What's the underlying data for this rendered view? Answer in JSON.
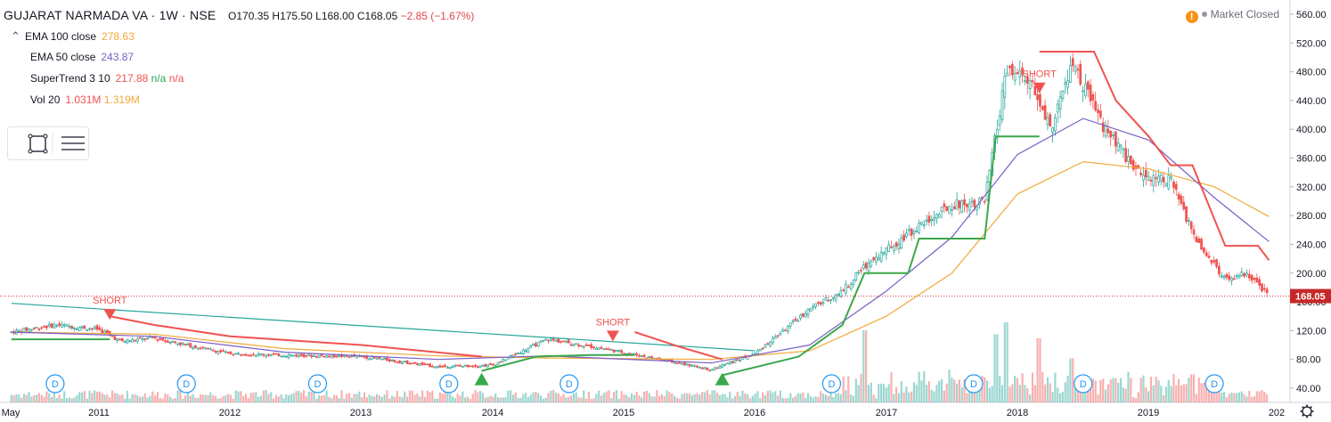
{
  "header": {
    "symbol": "GUJARAT NARMADA VA · 1W · NSE",
    "open": "O170.35",
    "high": "H175.50",
    "low": "L168.00",
    "close": "C168.05",
    "change": "−2.85 (−1.67%)"
  },
  "legend": [
    {
      "name": "EMA 100 close",
      "value": "278.63",
      "color": "#f2a93b"
    },
    {
      "name": "EMA 50 close",
      "value": "243.87",
      "color": "#7b5fc7"
    },
    {
      "name": "SuperTrend 3 10",
      "value": "217.88",
      "extra1": "n/a",
      "extra2": "n/a",
      "color": "#ef5350",
      "extra1_color": "#26a65b",
      "extra2_color": "#ef5350"
    },
    {
      "name": "Vol 20",
      "value": "1.031M",
      "extra1": "1.319M",
      "color": "#ef5350",
      "extra1_color": "#f2a93b"
    }
  ],
  "market_status": "Market Closed",
  "last_price_label": "168.05",
  "settings_icon": "gear-icon",
  "chart_data": {
    "type": "candlestick",
    "interval": "1W",
    "ylim": [
      40,
      560
    ],
    "y_ticks": [
      560,
      520,
      480,
      440,
      400,
      360,
      320,
      280,
      240,
      200,
      160,
      120,
      80,
      40
    ],
    "x_ticks": [
      "May",
      "2011",
      "2012",
      "2013",
      "2014",
      "2015",
      "2016",
      "2017",
      "2018",
      "2019",
      "202"
    ],
    "colors": {
      "up": "#26a69a",
      "down": "#ef5350",
      "candle_up_body": "#ffffff",
      "candle_down_body": "#ef5350",
      "trendline": "#26a69a",
      "last_price": "#d32f2f"
    },
    "price_path": [
      {
        "t": "2010-05",
        "v": 118
      },
      {
        "t": "2010-09",
        "v": 128
      },
      {
        "t": "2011-01",
        "v": 122
      },
      {
        "t": "2011-03",
        "v": 105
      },
      {
        "t": "2011-06",
        "v": 110
      },
      {
        "t": "2011-09",
        "v": 100
      },
      {
        "t": "2012-01",
        "v": 88
      },
      {
        "t": "2012-06",
        "v": 86
      },
      {
        "t": "2013-01",
        "v": 84
      },
      {
        "t": "2013-08",
        "v": 70
      },
      {
        "t": "2014-01",
        "v": 72
      },
      {
        "t": "2014-06",
        "v": 108
      },
      {
        "t": "2014-10",
        "v": 98
      },
      {
        "t": "2015-03",
        "v": 84
      },
      {
        "t": "2015-09",
        "v": 66
      },
      {
        "t": "2016-01",
        "v": 88
      },
      {
        "t": "2016-06",
        "v": 150
      },
      {
        "t": "2016-09",
        "v": 175
      },
      {
        "t": "2016-11",
        "v": 210
      },
      {
        "t": "2017-03",
        "v": 255
      },
      {
        "t": "2017-07",
        "v": 295
      },
      {
        "t": "2017-10",
        "v": 300
      },
      {
        "t": "2017-12",
        "v": 480
      },
      {
        "t": "2018-02",
        "v": 470
      },
      {
        "t": "2018-04",
        "v": 400
      },
      {
        "t": "2018-06",
        "v": 490
      },
      {
        "t": "2018-09",
        "v": 400
      },
      {
        "t": "2018-12",
        "v": 340
      },
      {
        "t": "2019-03",
        "v": 330
      },
      {
        "t": "2019-05",
        "v": 255
      },
      {
        "t": "2019-08",
        "v": 190
      },
      {
        "t": "2019-10",
        "v": 200
      },
      {
        "t": "2019-12",
        "v": 168
      }
    ],
    "ema100": [
      {
        "t": "2010-05",
        "v": 118
      },
      {
        "t": "2011-06",
        "v": 115
      },
      {
        "t": "2012-06",
        "v": 95
      },
      {
        "t": "2013-08",
        "v": 85
      },
      {
        "t": "2014-06",
        "v": 82
      },
      {
        "t": "2015-09",
        "v": 80
      },
      {
        "t": "2016-06",
        "v": 92
      },
      {
        "t": "2017-01",
        "v": 140
      },
      {
        "t": "2017-07",
        "v": 200
      },
      {
        "t": "2018-01",
        "v": 310
      },
      {
        "t": "2018-07",
        "v": 355
      },
      {
        "t": "2019-01",
        "v": 345
      },
      {
        "t": "2019-07",
        "v": 320
      },
      {
        "t": "2019-12",
        "v": 278.63
      }
    ],
    "ema50": [
      {
        "t": "2010-05",
        "v": 118
      },
      {
        "t": "2011-06",
        "v": 112
      },
      {
        "t": "2012-06",
        "v": 90
      },
      {
        "t": "2013-08",
        "v": 80
      },
      {
        "t": "2014-06",
        "v": 85
      },
      {
        "t": "2015-09",
        "v": 75
      },
      {
        "t": "2016-06",
        "v": 100
      },
      {
        "t": "2017-01",
        "v": 175
      },
      {
        "t": "2017-07",
        "v": 250
      },
      {
        "t": "2018-01",
        "v": 365
      },
      {
        "t": "2018-07",
        "v": 415
      },
      {
        "t": "2019-01",
        "v": 385
      },
      {
        "t": "2019-07",
        "v": 305
      },
      {
        "t": "2019-12",
        "v": 243.87
      }
    ],
    "supertrend_up": [
      [
        {
          "t": "2010-05",
          "v": 108
        },
        {
          "t": "2011-02",
          "v": 108
        }
      ],
      [
        {
          "t": "2013-12",
          "v": 64
        },
        {
          "t": "2014-05",
          "v": 84
        },
        {
          "t": "2014-10",
          "v": 86
        },
        {
          "t": "2015-02",
          "v": 86
        }
      ],
      [
        {
          "t": "2015-10",
          "v": 58
        },
        {
          "t": "2016-05",
          "v": 84
        },
        {
          "t": "2016-09",
          "v": 128
        },
        {
          "t": "2016-11",
          "v": 200
        },
        {
          "t": "2017-03",
          "v": 200
        },
        {
          "t": "2017-04",
          "v": 248
        },
        {
          "t": "2017-10",
          "v": 248
        },
        {
          "t": "2017-11",
          "v": 390
        },
        {
          "t": "2018-03",
          "v": 390
        }
      ]
    ],
    "supertrend_down": [
      [
        {
          "t": "2011-02",
          "v": 140
        },
        {
          "t": "2011-06",
          "v": 128
        },
        {
          "t": "2012-01",
          "v": 112
        },
        {
          "t": "2013-01",
          "v": 100
        },
        {
          "t": "2013-12",
          "v": 84
        }
      ],
      [
        {
          "t": "2015-02",
          "v": 118
        },
        {
          "t": "2015-06",
          "v": 98
        },
        {
          "t": "2015-10",
          "v": 80
        }
      ],
      [
        {
          "t": "2018-03",
          "v": 508
        },
        {
          "t": "2018-08",
          "v": 508
        },
        {
          "t": "2018-10",
          "v": 440
        },
        {
          "t": "2019-01",
          "v": 390
        },
        {
          "t": "2019-03",
          "v": 350
        },
        {
          "t": "2019-05",
          "v": 350
        },
        {
          "t": "2019-08",
          "v": 238
        },
        {
          "t": "2019-11",
          "v": 238
        },
        {
          "t": "2019-12",
          "v": 217.88
        }
      ]
    ],
    "trendline": [
      {
        "t": "2010-05",
        "v": 158
      },
      {
        "t": "2016-01",
        "v": 92
      }
    ],
    "signals": [
      {
        "t": "2011-02",
        "type": "short",
        "label": "SHORT",
        "v": 150
      },
      {
        "t": "2014-12",
        "type": "short",
        "label": "SHORT",
        "v": 120
      },
      {
        "t": "2018-03",
        "type": "short",
        "label": "SHORT",
        "v": 465
      },
      {
        "t": "2013-12",
        "type": "long",
        "v": 44
      },
      {
        "t": "2015-10",
        "type": "long",
        "v": 44
      }
    ],
    "dividend_markers": [
      {
        "t": "2010-09",
        "label": "D"
      },
      {
        "t": "2011-09",
        "label": "D"
      },
      {
        "t": "2012-09",
        "label": "D"
      },
      {
        "t": "2013-09",
        "label": "D"
      },
      {
        "t": "2014-08",
        "label": "D"
      },
      {
        "t": "2016-08",
        "label": "D"
      },
      {
        "t": "2017-09",
        "label": "D"
      },
      {
        "t": "2018-07",
        "label": "D"
      },
      {
        "t": "2019-07",
        "label": "D"
      }
    ],
    "volume_spikes": [
      {
        "t": "2016-11",
        "v": 0.9
      },
      {
        "t": "2017-11",
        "v": 0.85
      },
      {
        "t": "2017-12",
        "v": 1.0
      },
      {
        "t": "2018-03",
        "v": 0.8
      },
      {
        "t": "2018-06",
        "v": 0.55
      },
      {
        "t": "2019-05",
        "v": 0.35
      }
    ]
  }
}
